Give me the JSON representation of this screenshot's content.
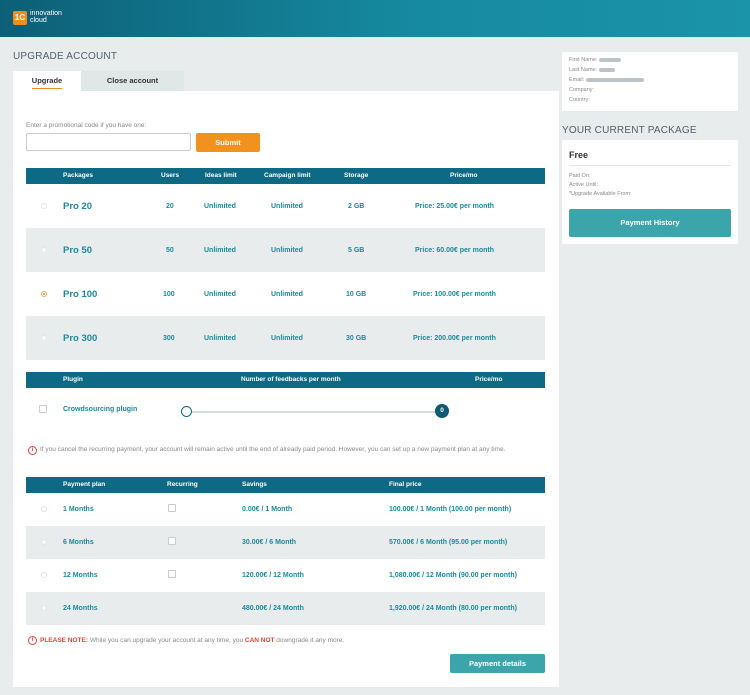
{
  "brand": {
    "badge": "1C",
    "line1": "innovation",
    "line2": "cloud"
  },
  "page_title": "UPGRADE ACCOUNT",
  "tabs": [
    {
      "label": "Upgrade"
    },
    {
      "label": "Close account"
    }
  ],
  "promo": {
    "label": "Enter a promotional code if you have one:",
    "value": "",
    "submit_label": "Submit"
  },
  "packages_table": {
    "headers": [
      "Packages",
      "Users",
      "Ideas limit",
      "Campaign limit",
      "Storage",
      "Price/mo"
    ],
    "rows": [
      {
        "name": "Pro 20",
        "users": "20",
        "ideas": "Unlimited",
        "campaigns": "Unlimited",
        "storage": "2 GB",
        "price": "Price: 25.00€ per month",
        "selected": false
      },
      {
        "name": "Pro 50",
        "users": "50",
        "ideas": "Unlimited",
        "campaigns": "Unlimited",
        "storage": "5 GB",
        "price": "Price: 60.00€ per month",
        "selected": false
      },
      {
        "name": "Pro 100",
        "users": "100",
        "ideas": "Unlimited",
        "campaigns": "Unlimited",
        "storage": "10 GB",
        "price": "Price: 100.00€ per month",
        "selected": true
      },
      {
        "name": "Pro 300",
        "users": "300",
        "ideas": "Unlimited",
        "campaigns": "Unlimited",
        "storage": "30 GB",
        "price": "Price: 200.00€ per month",
        "selected": false
      }
    ]
  },
  "plugin_table": {
    "headers": [
      "Plugin",
      "Number of feedbacks per month",
      "Price/mo"
    ],
    "row": {
      "name": "Crowdsourcing plugin",
      "slider_value": "0",
      "price": ""
    }
  },
  "recurring_notice": "If you cancel the recurring payment, your account will remain active until the end of already paid period. However, you can set up a new payment plan at any time.",
  "plans_table": {
    "headers": [
      "Payment plan",
      "Recurring",
      "Savings",
      "Final price"
    ],
    "rows": [
      {
        "plan": "1 Months",
        "savings": "0.00€ / 1 Month",
        "final": "100.00€ / 1 Month (100.00 per month)"
      },
      {
        "plan": "6 Months",
        "savings": "30.00€ / 6 Month",
        "final": "570.00€ / 6 Month (95.00 per month)"
      },
      {
        "plan": "12 Months",
        "savings": "120.00€ / 12 Month",
        "final": "1,080.00€ / 12 Month (90.00 per month)"
      },
      {
        "plan": "24 Months",
        "savings": "480.00€ / 24 Month",
        "final": "1,920.00€ / 24 Month (80.00 per month)"
      }
    ]
  },
  "please_note": {
    "label": "PLEASE NOTE:",
    "part1": "While you can upgrade your account at any time, you",
    "emphasis": "CAN NOT",
    "part2": "downgrade it any more."
  },
  "payment_details_label": "Payment details",
  "user_info": {
    "first_name": "First Name:",
    "last_name": "Last Name:",
    "email": "Email:",
    "company": "Company:",
    "country": "Country:"
  },
  "current_package": {
    "title": "YOUR CURRENT PACKAGE",
    "name": "Free",
    "paid_on": "Paid On:",
    "active_until": "Active Until:",
    "upgrade_from": "*Upgrade Available From:",
    "history_label": "Payment History"
  },
  "colors": {
    "header_teal": "#0e6a84",
    "accent_orange": "#f28c1e",
    "button_teal": "#3ba5ab",
    "text_teal": "#1a8a9c"
  }
}
